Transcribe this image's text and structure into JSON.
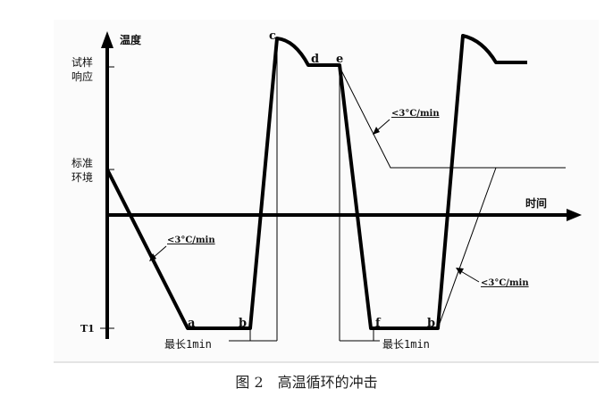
{
  "axes": {
    "y_label": "温度",
    "x_label": "时间",
    "y_ticks": [
      "试样",
      "响应",
      "标准",
      "环境",
      "T1"
    ]
  },
  "points": {
    "a": "a",
    "b1": "b",
    "c": "c",
    "d": "d",
    "e": "e",
    "f": "f",
    "b2": "b"
  },
  "annotations": {
    "rate1": "<3°C/min",
    "rate2": "<3°C/min",
    "rate3": "<3°C/min",
    "duration1": "最长1min",
    "duration2": "最长1min"
  },
  "caption": "图 2　高温循环的冲击"
}
